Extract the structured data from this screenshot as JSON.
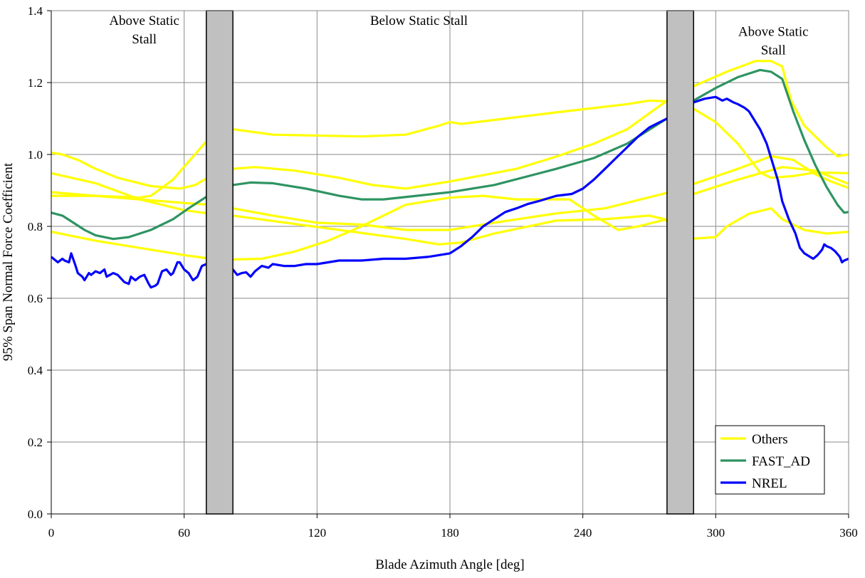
{
  "chart_data": {
    "type": "line",
    "title": "",
    "xlabel": "Blade Azimuth Angle [deg]",
    "ylabel": "95% Span Normal Force Coefficient",
    "xlim": [
      0,
      360
    ],
    "ylim": [
      0,
      1.4
    ],
    "xticks": [
      0,
      60,
      120,
      180,
      240,
      300,
      360
    ],
    "yticks": [
      0.0,
      0.2,
      0.4,
      0.6,
      0.8,
      1.0,
      1.2,
      1.4
    ],
    "grid": true,
    "legend_position": "bottom-right",
    "shaded_regions": [
      {
        "x": [
          70,
          82
        ],
        "color": "#c0c0c0"
      },
      {
        "x": [
          278,
          290
        ],
        "color": "#c0c0c0"
      }
    ],
    "annotations": [
      {
        "text": "Above Static Stall",
        "lines": [
          "Above Static",
          "Stall"
        ],
        "x": 42,
        "y": 1.36
      },
      {
        "text": "Below Static Stall",
        "lines": [
          "Below Static Stall"
        ],
        "x": 166,
        "y": 1.36
      },
      {
        "text": "Above Static Stall",
        "lines": [
          "Above Static",
          "Stall"
        ],
        "x": 326,
        "y": 1.33
      }
    ],
    "legend": [
      {
        "label": "Others",
        "color": "#ffff00"
      },
      {
        "label": "FAST_AD",
        "color": "#2e9462"
      },
      {
        "label": "NREL",
        "color": "#0000ff"
      }
    ],
    "series": [
      {
        "name": "Others",
        "color": "#ffff00",
        "points": [
          [
            0,
            1.005
          ],
          [
            5,
            1.0
          ],
          [
            12,
            0.985
          ],
          [
            20,
            0.96
          ],
          [
            30,
            0.935
          ],
          [
            45,
            0.912
          ],
          [
            58,
            0.905
          ],
          [
            65,
            0.915
          ],
          [
            72,
            0.94
          ],
          [
            82,
            0.96
          ],
          [
            92,
            0.965
          ],
          [
            110,
            0.955
          ],
          [
            130,
            0.935
          ],
          [
            145,
            0.915
          ],
          [
            160,
            0.905
          ],
          [
            180,
            0.925
          ],
          [
            210,
            0.96
          ],
          [
            228,
            0.994
          ],
          [
            245,
            1.03
          ],
          [
            260,
            1.07
          ],
          [
            278,
            1.15
          ],
          [
            290,
            1.19
          ],
          [
            305,
            1.23
          ],
          [
            318,
            1.26
          ],
          [
            325,
            1.26
          ],
          [
            330,
            1.245
          ],
          [
            334,
            1.15
          ],
          [
            340,
            1.08
          ],
          [
            350,
            1.02
          ],
          [
            355,
            0.995
          ],
          [
            360,
            1.0
          ]
        ]
      },
      {
        "name": "Others",
        "color": "#ffff00",
        "points": [
          [
            0,
            0.948
          ],
          [
            20,
            0.92
          ],
          [
            40,
            0.875
          ],
          [
            60,
            0.845
          ],
          [
            72,
            0.835
          ],
          [
            82,
            0.85
          ],
          [
            100,
            0.83
          ],
          [
            120,
            0.81
          ],
          [
            140,
            0.805
          ],
          [
            160,
            0.79
          ],
          [
            180,
            0.79
          ],
          [
            200,
            0.81
          ],
          [
            228,
            0.836
          ],
          [
            250,
            0.85
          ],
          [
            276,
            0.89
          ],
          [
            290,
            0.918
          ],
          [
            310,
            0.96
          ],
          [
            325,
            0.995
          ],
          [
            335,
            0.985
          ],
          [
            345,
            0.945
          ],
          [
            352,
            0.925
          ],
          [
            360,
            0.907
          ]
        ]
      },
      {
        "name": "Others",
        "color": "#ffff00",
        "points": [
          [
            0,
            0.895
          ],
          [
            20,
            0.885
          ],
          [
            40,
            0.88
          ],
          [
            45,
            0.885
          ],
          [
            55,
            0.93
          ],
          [
            62,
            0.98
          ],
          [
            72,
            1.05
          ],
          [
            82,
            1.07
          ],
          [
            100,
            1.055
          ],
          [
            140,
            1.05
          ],
          [
            160,
            1.055
          ],
          [
            175,
            1.08
          ],
          [
            180,
            1.09
          ],
          [
            185,
            1.085
          ],
          [
            228,
            1.117
          ],
          [
            260,
            1.14
          ],
          [
            270,
            1.15
          ],
          [
            278,
            1.148
          ],
          [
            290,
            1.127
          ],
          [
            300,
            1.09
          ],
          [
            310,
            1.03
          ],
          [
            320,
            0.95
          ],
          [
            325,
            0.935
          ],
          [
            335,
            0.94
          ],
          [
            345,
            0.95
          ],
          [
            360,
            0.948
          ]
        ]
      },
      {
        "name": "Others",
        "color": "#ffff00",
        "points": [
          [
            0,
            0.885
          ],
          [
            20,
            0.885
          ],
          [
            40,
            0.875
          ],
          [
            60,
            0.865
          ],
          [
            72,
            0.86
          ],
          [
            82,
            0.83
          ],
          [
            100,
            0.815
          ],
          [
            130,
            0.79
          ],
          [
            160,
            0.765
          ],
          [
            175,
            0.75
          ],
          [
            185,
            0.755
          ],
          [
            200,
            0.78
          ],
          [
            228,
            0.816
          ],
          [
            250,
            0.82
          ],
          [
            270,
            0.83
          ],
          [
            277,
            0.82
          ],
          [
            280,
            0.8
          ],
          [
            290,
            0.766
          ],
          [
            300,
            0.77
          ],
          [
            305,
            0.8
          ],
          [
            315,
            0.835
          ],
          [
            325,
            0.85
          ],
          [
            330,
            0.82
          ],
          [
            340,
            0.79
          ],
          [
            350,
            0.78
          ],
          [
            360,
            0.785
          ]
        ]
      },
      {
        "name": "Others",
        "color": "#ffff00",
        "points": [
          [
            0,
            0.785
          ],
          [
            20,
            0.76
          ],
          [
            40,
            0.74
          ],
          [
            60,
            0.72
          ],
          [
            72,
            0.71
          ],
          [
            82,
            0.708
          ],
          [
            95,
            0.71
          ],
          [
            110,
            0.73
          ],
          [
            125,
            0.76
          ],
          [
            140,
            0.8
          ],
          [
            160,
            0.86
          ],
          [
            180,
            0.88
          ],
          [
            195,
            0.885
          ],
          [
            210,
            0.875
          ],
          [
            234,
            0.875
          ],
          [
            245,
            0.83
          ],
          [
            256,
            0.79
          ],
          [
            265,
            0.8
          ],
          [
            278,
            0.82
          ],
          [
            290,
            0.89
          ],
          [
            310,
            0.93
          ],
          [
            330,
            0.965
          ],
          [
            345,
            0.955
          ],
          [
            360,
            0.918
          ]
        ]
      },
      {
        "name": "FAST_AD",
        "color": "#2e9462",
        "points": [
          [
            0,
            0.838
          ],
          [
            5,
            0.83
          ],
          [
            10,
            0.81
          ],
          [
            15,
            0.79
          ],
          [
            20,
            0.775
          ],
          [
            28,
            0.765
          ],
          [
            35,
            0.77
          ],
          [
            45,
            0.79
          ],
          [
            55,
            0.82
          ],
          [
            62,
            0.85
          ],
          [
            72,
            0.89
          ],
          [
            82,
            0.915
          ],
          [
            90,
            0.922
          ],
          [
            100,
            0.92
          ],
          [
            115,
            0.905
          ],
          [
            130,
            0.885
          ],
          [
            140,
            0.875
          ],
          [
            150,
            0.875
          ],
          [
            180,
            0.895
          ],
          [
            200,
            0.915
          ],
          [
            228,
            0.96
          ],
          [
            245,
            0.99
          ],
          [
            260,
            1.03
          ],
          [
            278,
            1.1
          ],
          [
            290,
            1.15
          ],
          [
            300,
            1.185
          ],
          [
            310,
            1.215
          ],
          [
            320,
            1.235
          ],
          [
            325,
            1.23
          ],
          [
            330,
            1.21
          ],
          [
            335,
            1.12
          ],
          [
            340,
            1.04
          ],
          [
            345,
            0.97
          ],
          [
            350,
            0.91
          ],
          [
            355,
            0.86
          ],
          [
            358,
            0.838
          ],
          [
            360,
            0.84
          ]
        ]
      },
      {
        "name": "NREL",
        "color": "#0000ff",
        "points": [
          [
            0,
            0.715
          ],
          [
            2,
            0.705
          ],
          [
            3,
            0.7
          ],
          [
            5,
            0.71
          ],
          [
            6,
            0.705
          ],
          [
            8,
            0.7
          ],
          [
            9,
            0.725
          ],
          [
            11,
            0.69
          ],
          [
            12,
            0.67
          ],
          [
            14,
            0.66
          ],
          [
            15,
            0.65
          ],
          [
            17,
            0.67
          ],
          [
            18,
            0.665
          ],
          [
            20,
            0.675
          ],
          [
            22,
            0.67
          ],
          [
            24,
            0.68
          ],
          [
            25,
            0.66
          ],
          [
            28,
            0.67
          ],
          [
            30,
            0.665
          ],
          [
            33,
            0.645
          ],
          [
            35,
            0.64
          ],
          [
            36,
            0.66
          ],
          [
            38,
            0.65
          ],
          [
            40,
            0.66
          ],
          [
            42,
            0.665
          ],
          [
            44,
            0.64
          ],
          [
            45,
            0.63
          ],
          [
            47,
            0.635
          ],
          [
            48,
            0.64
          ],
          [
            50,
            0.675
          ],
          [
            52,
            0.68
          ],
          [
            54,
            0.665
          ],
          [
            55,
            0.67
          ],
          [
            57,
            0.7
          ],
          [
            58,
            0.7
          ],
          [
            60,
            0.68
          ],
          [
            62,
            0.67
          ],
          [
            64,
            0.65
          ],
          [
            66,
            0.66
          ],
          [
            68,
            0.69
          ],
          [
            70,
            0.695
          ],
          [
            72,
            0.7
          ],
          [
            82,
            0.68
          ],
          [
            84,
            0.665
          ],
          [
            86,
            0.67
          ],
          [
            88,
            0.672
          ],
          [
            90,
            0.66
          ],
          [
            92,
            0.675
          ],
          [
            95,
            0.69
          ],
          [
            98,
            0.685
          ],
          [
            100,
            0.695
          ],
          [
            105,
            0.69
          ],
          [
            110,
            0.69
          ],
          [
            115,
            0.695
          ],
          [
            120,
            0.695
          ],
          [
            125,
            0.7
          ],
          [
            130,
            0.705
          ],
          [
            140,
            0.705
          ],
          [
            150,
            0.71
          ],
          [
            160,
            0.71
          ],
          [
            170,
            0.715
          ],
          [
            180,
            0.725
          ],
          [
            185,
            0.745
          ],
          [
            190,
            0.77
          ],
          [
            195,
            0.8
          ],
          [
            200,
            0.82
          ],
          [
            205,
            0.84
          ],
          [
            210,
            0.85
          ],
          [
            215,
            0.862
          ],
          [
            220,
            0.87
          ],
          [
            228,
            0.885
          ],
          [
            235,
            0.89
          ],
          [
            240,
            0.905
          ],
          [
            245,
            0.93
          ],
          [
            250,
            0.96
          ],
          [
            255,
            0.99
          ],
          [
            260,
            1.02
          ],
          [
            265,
            1.05
          ],
          [
            270,
            1.075
          ],
          [
            278,
            1.1
          ],
          [
            290,
            1.145
          ],
          [
            295,
            1.155
          ],
          [
            300,
            1.16
          ],
          [
            303,
            1.15
          ],
          [
            305,
            1.155
          ],
          [
            308,
            1.145
          ],
          [
            310,
            1.14
          ],
          [
            313,
            1.13
          ],
          [
            315,
            1.12
          ],
          [
            318,
            1.09
          ],
          [
            320,
            1.07
          ],
          [
            323,
            1.03
          ],
          [
            325,
            0.99
          ],
          [
            327,
            0.95
          ],
          [
            328,
            0.93
          ],
          [
            330,
            0.87
          ],
          [
            333,
            0.82
          ],
          [
            336,
            0.78
          ],
          [
            338,
            0.74
          ],
          [
            340,
            0.725
          ],
          [
            344,
            0.71
          ],
          [
            346,
            0.72
          ],
          [
            348,
            0.735
          ],
          [
            349,
            0.75
          ],
          [
            350,
            0.745
          ],
          [
            352,
            0.74
          ],
          [
            354,
            0.73
          ],
          [
            356,
            0.715
          ],
          [
            357,
            0.7
          ],
          [
            358,
            0.705
          ],
          [
            360,
            0.71
          ]
        ]
      }
    ]
  }
}
